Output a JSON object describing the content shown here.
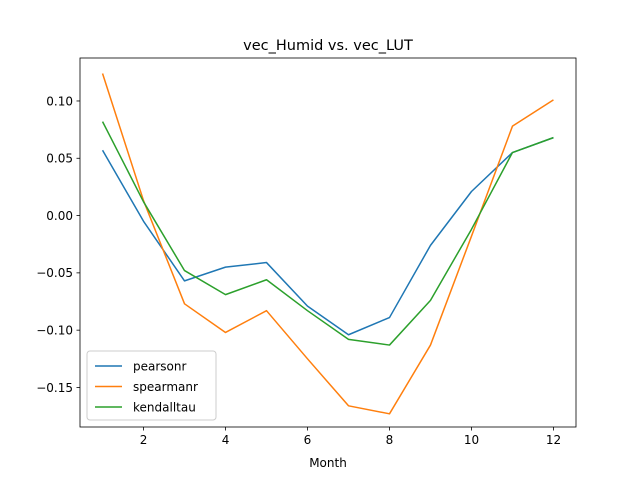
{
  "chart_data": {
    "type": "line",
    "title": "vec_Humid vs. vec_LUT",
    "xlabel": "Month",
    "ylabel": "",
    "x": [
      1,
      2,
      3,
      4,
      5,
      6,
      7,
      8,
      9,
      10,
      11,
      12
    ],
    "xticks": [
      2,
      4,
      6,
      8,
      10,
      12
    ],
    "yticks": [
      -0.15,
      -0.1,
      -0.05,
      0.0,
      0.05,
      0.1
    ],
    "ytick_labels": [
      "−0.15",
      "−0.10",
      "−0.05",
      "0.00",
      "0.05",
      "0.10"
    ],
    "xlim": [
      0.45,
      12.55
    ],
    "ylim": [
      -0.1845,
      0.1375
    ],
    "grid": false,
    "legend_position": "lower-left",
    "series": [
      {
        "name": "pearsonr",
        "color": "#1f77b4",
        "values": [
          0.057,
          -0.005,
          -0.057,
          -0.045,
          -0.041,
          -0.079,
          -0.104,
          -0.089,
          -0.026,
          0.021,
          0.055,
          0.068
        ]
      },
      {
        "name": "spearmanr",
        "color": "#ff7f0e",
        "values": [
          0.124,
          0.013,
          -0.077,
          -0.102,
          -0.083,
          -0.125,
          -0.166,
          -0.173,
          -0.113,
          -0.018,
          0.078,
          0.101
        ]
      },
      {
        "name": "kendalltau",
        "color": "#2ca02c",
        "values": [
          0.082,
          0.012,
          -0.048,
          -0.069,
          -0.056,
          -0.083,
          -0.108,
          -0.113,
          -0.074,
          -0.012,
          0.055,
          0.068
        ]
      }
    ]
  }
}
